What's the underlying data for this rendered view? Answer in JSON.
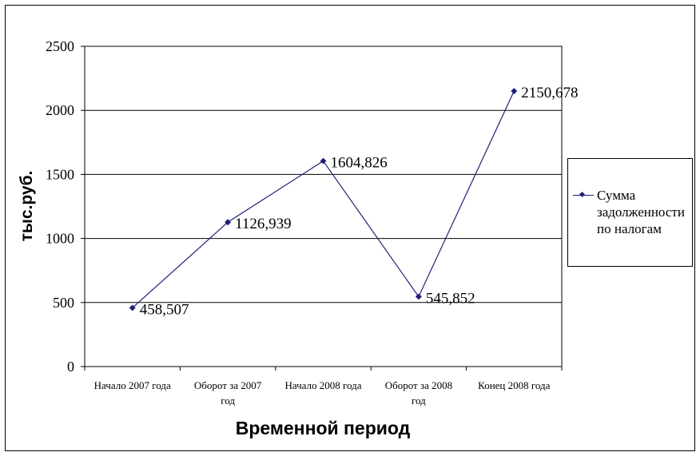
{
  "chart_data": {
    "type": "line",
    "categories": [
      "Начало 2007 года",
      "Оборот за 2007 год",
      "Начало 2008 года",
      "Оборот за 2008 год",
      "Конец 2008 года"
    ],
    "series": [
      {
        "name": "Сумма задолженности по налогам",
        "values": [
          458.507,
          1126.939,
          1604.826,
          545.852,
          2150.678
        ],
        "labels": [
          "458,507",
          "1126,939",
          "1604,826",
          "545,852",
          "2150,678"
        ],
        "color": "#1f1f7a"
      }
    ],
    "xlabel": "Временной период",
    "ylabel": "тыс.руб.",
    "ylim": [
      0,
      2500
    ],
    "yticks": [
      0,
      500,
      1000,
      1500,
      2000,
      2500
    ],
    "grid": true,
    "legend": "right"
  }
}
